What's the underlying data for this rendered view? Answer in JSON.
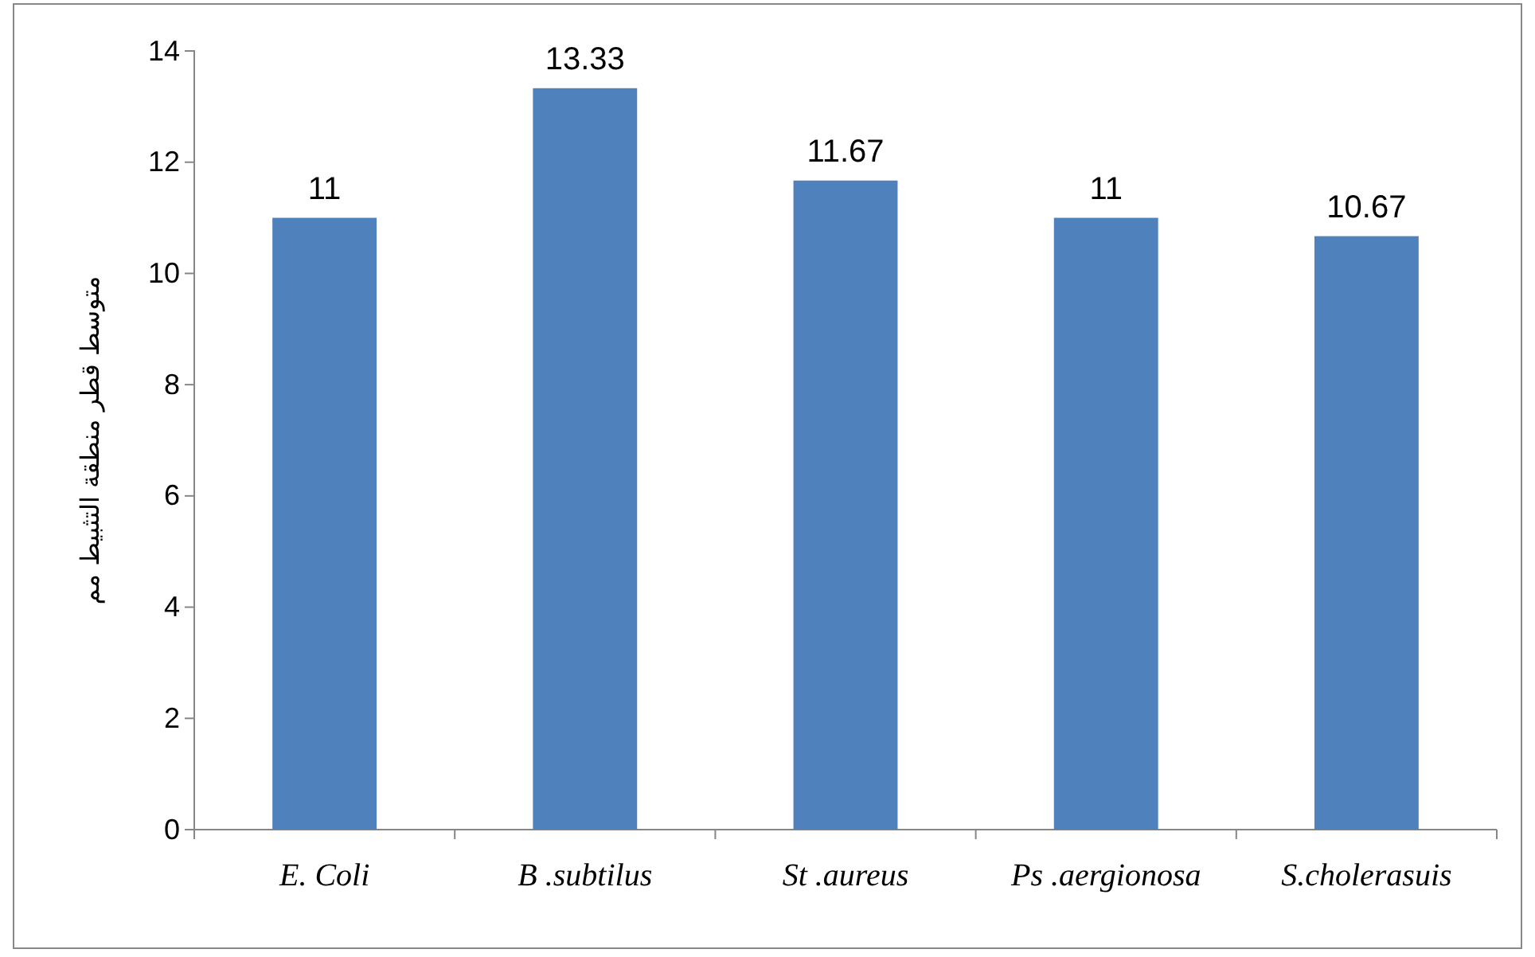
{
  "chart_data": {
    "type": "bar",
    "ylabel": "متوسط قطر منطقة التثبيط مم",
    "categories": [
      "E. Coli",
      "B .subtilus",
      "St .aureus",
      "Ps .aergionosa",
      "S.cholerasuis"
    ],
    "values": [
      11,
      13.33,
      11.67,
      11,
      10.67
    ],
    "color": "#4f81bd",
    "ylim": [
      0,
      14
    ],
    "yticks": [
      0,
      2,
      4,
      6,
      8,
      10,
      12,
      14
    ],
    "grid": false,
    "data_labels": true
  }
}
